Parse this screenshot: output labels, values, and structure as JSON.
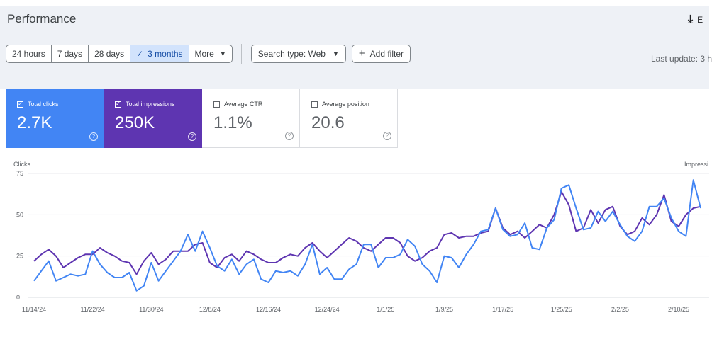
{
  "header": {
    "title": "Performance",
    "export_label": "E"
  },
  "date_range": {
    "options": [
      "24 hours",
      "7 days",
      "28 days",
      "3 months"
    ],
    "selected": "3 months",
    "more_label": "More"
  },
  "filters": {
    "search_type": "Search type: Web",
    "add_filter": "Add filter"
  },
  "last_update": "Last update: 3 h",
  "metrics": {
    "clicks": {
      "label": "Total clicks",
      "value": "2.7K",
      "checked": true
    },
    "impressions": {
      "label": "Total impressions",
      "value": "250K",
      "checked": true
    },
    "ctr": {
      "label": "Average CTR",
      "value": "1.1%",
      "checked": false
    },
    "position": {
      "label": "Average position",
      "value": "20.6",
      "checked": false
    }
  },
  "colors": {
    "clicks": "#4285f4",
    "impressions": "#5e35b1",
    "accent": "#1a73e8"
  },
  "chart_data": {
    "type": "line",
    "left_axis_label": "Clicks",
    "right_axis_label": "Impressi",
    "y_ticks": [
      0,
      25,
      50,
      75
    ],
    "ylim": [
      0,
      75
    ],
    "x_labels": [
      "11/14/24",
      "11/22/24",
      "11/30/24",
      "12/8/24",
      "12/16/24",
      "12/24/24",
      "1/1/25",
      "1/9/25",
      "1/17/25",
      "1/25/25",
      "2/2/25",
      "2/10/25"
    ],
    "x_label_positions": [
      0,
      8,
      16,
      24,
      32,
      40,
      48,
      56,
      64,
      72,
      80,
      88
    ],
    "series": [
      {
        "key": "clicks",
        "values": [
          10,
          16,
          22,
          10,
          12,
          14,
          13,
          14,
          28,
          20,
          15,
          12,
          12,
          15,
          4,
          7,
          21,
          10,
          16,
          22,
          28,
          38,
          28,
          40,
          30,
          19,
          16,
          23,
          14,
          20,
          23,
          11,
          9,
          16,
          15,
          16,
          13,
          20,
          32,
          14,
          18,
          11,
          11,
          17,
          20,
          32,
          32,
          18,
          24,
          24,
          26,
          35,
          31,
          20,
          16,
          9,
          25,
          24,
          18,
          26,
          32,
          40,
          41,
          54,
          41,
          37,
          38,
          45,
          30,
          29,
          42,
          47,
          66,
          68,
          54,
          41,
          42,
          52,
          46,
          52,
          44,
          37,
          34,
          40,
          55,
          55,
          60,
          48,
          40,
          37,
          71,
          54
        ]
      },
      {
        "key": "impressions",
        "values": [
          22,
          26,
          29,
          25,
          18,
          21,
          24,
          26,
          26,
          30,
          27,
          25,
          22,
          21,
          14,
          22,
          27,
          20,
          23,
          28,
          28,
          28,
          32,
          33,
          21,
          18,
          24,
          26,
          22,
          28,
          26,
          23,
          21,
          21,
          24,
          26,
          25,
          30,
          33,
          28,
          24,
          28,
          32,
          36,
          34,
          30,
          28,
          32,
          36,
          36,
          33,
          25,
          22,
          24,
          28,
          30,
          38,
          39,
          36,
          37,
          37,
          39,
          40,
          54,
          42,
          38,
          40,
          36,
          40,
          44,
          42,
          50,
          64,
          56,
          40,
          42,
          53,
          45,
          53,
          55,
          43,
          38,
          40,
          48,
          44,
          50,
          62,
          46,
          43,
          50,
          54,
          55
        ]
      }
    ]
  }
}
